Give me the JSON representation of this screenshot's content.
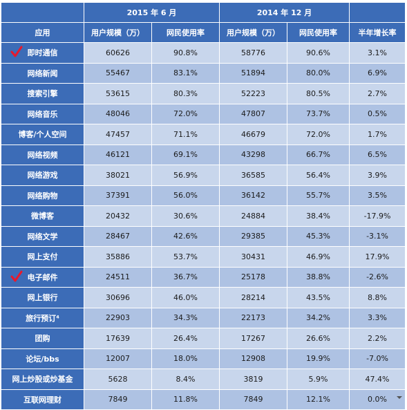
{
  "table": {
    "period_headers": [
      "",
      "2015 年 6 月",
      "2014 年 12 月",
      ""
    ],
    "column_headers": [
      "应用",
      "用户规模（万）",
      "网民使用率",
      "用户规模（万）",
      "网民使用率",
      "半年增长率"
    ],
    "rows": [
      {
        "app": "即时通信",
        "checked": true,
        "cells": [
          "60626",
          "90.8%",
          "58776",
          "90.6%",
          "3.1%"
        ]
      },
      {
        "app": "网络新闻",
        "checked": false,
        "cells": [
          "55467",
          "83.1%",
          "51894",
          "80.0%",
          "6.9%"
        ]
      },
      {
        "app": "搜索引擎",
        "checked": false,
        "cells": [
          "53615",
          "80.3%",
          "52223",
          "80.5%",
          "2.7%"
        ]
      },
      {
        "app": "网络音乐",
        "checked": false,
        "cells": [
          "48046",
          "72.0%",
          "47807",
          "73.7%",
          "0.5%"
        ]
      },
      {
        "app": "博客/个人空间",
        "checked": false,
        "cells": [
          "47457",
          "71.1%",
          "46679",
          "72.0%",
          "1.7%"
        ]
      },
      {
        "app": "网络视频",
        "checked": false,
        "cells": [
          "46121",
          "69.1%",
          "43298",
          "66.7%",
          "6.5%"
        ]
      },
      {
        "app": "网络游戏",
        "checked": false,
        "cells": [
          "38021",
          "56.9%",
          "36585",
          "56.4%",
          "3.9%"
        ]
      },
      {
        "app": "网络购物",
        "checked": false,
        "cells": [
          "37391",
          "56.0%",
          "36142",
          "55.7%",
          "3.5%"
        ]
      },
      {
        "app": "微博客",
        "checked": false,
        "cells": [
          "20432",
          "30.6%",
          "24884",
          "38.4%",
          "-17.9%"
        ]
      },
      {
        "app": "网络文学",
        "checked": false,
        "cells": [
          "28467",
          "42.6%",
          "29385",
          "45.3%",
          "-3.1%"
        ]
      },
      {
        "app": "网上支付",
        "checked": false,
        "cells": [
          "35886",
          "53.7%",
          "30431",
          "46.9%",
          "17.9%"
        ]
      },
      {
        "app": "电子邮件",
        "checked": true,
        "cells": [
          "24511",
          "36.7%",
          "25178",
          "38.8%",
          "-2.6%"
        ]
      },
      {
        "app": "网上银行",
        "checked": false,
        "cells": [
          "30696",
          "46.0%",
          "28214",
          "43.5%",
          "8.8%"
        ]
      },
      {
        "app": "旅行预订⁴",
        "checked": false,
        "cells": [
          "22903",
          "34.3%",
          "22173",
          "34.2%",
          "3.3%"
        ]
      },
      {
        "app": "团购",
        "checked": false,
        "cells": [
          "17639",
          "26.4%",
          "17267",
          "26.6%",
          "2.2%"
        ]
      },
      {
        "app": "论坛/bbs",
        "checked": false,
        "cells": [
          "12007",
          "18.0%",
          "12908",
          "19.9%",
          "-7.0%"
        ]
      },
      {
        "app": "网上炒股或炒基金",
        "checked": false,
        "cells": [
          "5628",
          "8.4%",
          "3819",
          "5.9%",
          "47.4%"
        ]
      },
      {
        "app": "互联网理财",
        "checked": false,
        "cells": [
          "7849",
          "11.8%",
          "7849",
          "12.1%",
          "0.0%"
        ]
      }
    ]
  },
  "colors": {
    "header_blue": "#3c6cb7",
    "row_light": "#c8d6ec",
    "row_mid": "#aec2e3",
    "check_red": "#e8192c"
  },
  "icons": {
    "check": "red-checkmark-icon"
  }
}
